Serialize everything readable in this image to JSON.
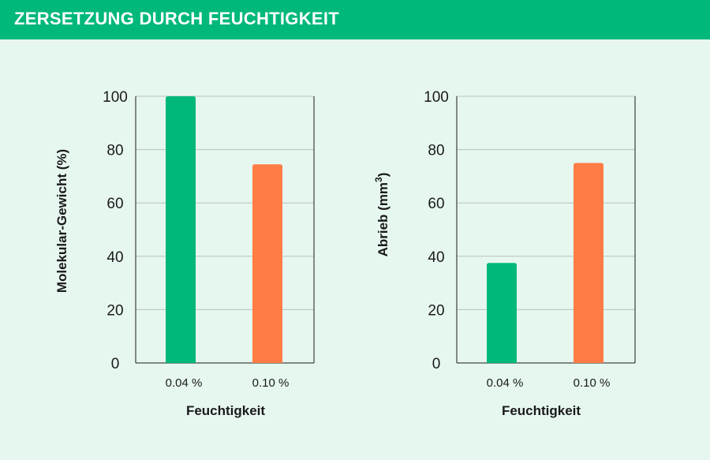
{
  "header": {
    "title": "ZERSETZUNG DURCH FEUCHTIGKEIT"
  },
  "colors": {
    "banner": "#00b87a",
    "background": "#e6f7ef",
    "bar_green": "#00b87a",
    "bar_orange": "#ff7c45",
    "grid": "#b9c3be",
    "axis": "#1a1a1a"
  },
  "chart_data": [
    {
      "type": "bar",
      "categories": [
        "0.04 %",
        "0.10 %"
      ],
      "values": [
        100,
        74.5
      ],
      "bar_colors": [
        "#00b87a",
        "#ff7c45"
      ],
      "xlabel": "Feuchtigkeit",
      "ylabel": "Molekular-Gewicht (%)",
      "ylim": [
        0,
        100
      ],
      "yticks": [
        0,
        20,
        40,
        60,
        80,
        100
      ],
      "grid": true
    },
    {
      "type": "bar",
      "categories": [
        "0.04 %",
        "0.10 %"
      ],
      "values": [
        37.5,
        75
      ],
      "bar_colors": [
        "#00b87a",
        "#ff7c45"
      ],
      "xlabel": "Feuchtigkeit",
      "ylabel": "Abrieb (mm³)",
      "ylabel_main": "Abrieb (mm",
      "ylabel_sup": "3",
      "ylabel_end": ")",
      "ylim": [
        0,
        100
      ],
      "yticks": [
        0,
        20,
        40,
        60,
        80,
        100
      ],
      "grid": true
    }
  ]
}
